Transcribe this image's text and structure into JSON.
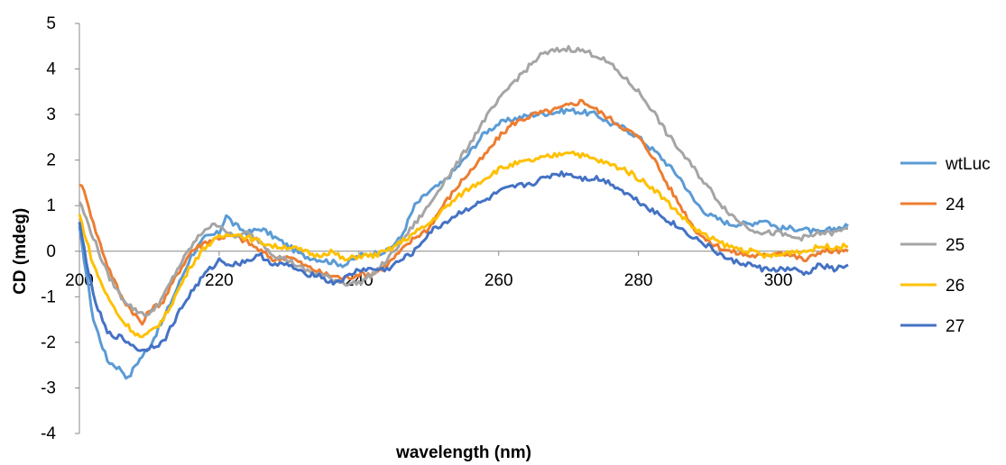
{
  "chart_data": {
    "type": "line",
    "title": "",
    "xlabel": "wavelength (nm)",
    "ylabel": "CD (mdeg)",
    "xlim": [
      200,
      310
    ],
    "ylim": [
      -4,
      5
    ],
    "xticks": [
      200,
      220,
      240,
      260,
      280,
      300
    ],
    "xtick_labels": [
      "200",
      "220",
      "240",
      "260",
      "280",
      "300"
    ],
    "yticks": [
      -4,
      -3,
      -2,
      -1,
      0,
      1,
      2,
      3,
      4,
      5
    ],
    "ytick_labels": [
      "-4",
      "-3",
      "-2",
      "-1",
      "0",
      "1",
      "2",
      "3",
      "4",
      "5"
    ],
    "grid": false,
    "legend_position": "right",
    "series": [
      {
        "name": "wtLuc",
        "color": "#5B9BD5",
        "points": [
          [
            200,
            0.5
          ],
          [
            202,
            -1.5
          ],
          [
            204,
            -2.4
          ],
          [
            206,
            -2.6
          ],
          [
            207,
            -2.8
          ],
          [
            208,
            -2.5
          ],
          [
            210,
            -2.1
          ],
          [
            212,
            -1.5
          ],
          [
            214,
            -0.8
          ],
          [
            216,
            -0.1
          ],
          [
            218,
            0.3
          ],
          [
            220,
            0.4
          ],
          [
            221,
            0.8
          ],
          [
            222,
            0.6
          ],
          [
            224,
            0.4
          ],
          [
            226,
            0.5
          ],
          [
            228,
            0.3
          ],
          [
            230,
            0.1
          ],
          [
            232,
            -0.1
          ],
          [
            235,
            -0.2
          ],
          [
            238,
            -0.3
          ],
          [
            240,
            -0.1
          ],
          [
            244,
            0.0
          ],
          [
            246,
            0.3
          ],
          [
            248,
            1.0
          ],
          [
            250,
            1.3
          ],
          [
            252,
            1.5
          ],
          [
            255,
            2.0
          ],
          [
            258,
            2.6
          ],
          [
            260,
            2.8
          ],
          [
            262,
            2.9
          ],
          [
            265,
            3.0
          ],
          [
            268,
            3.05
          ],
          [
            270,
            3.1
          ],
          [
            272,
            3.05
          ],
          [
            274,
            3.0
          ],
          [
            276,
            2.8
          ],
          [
            278,
            2.7
          ],
          [
            280,
            2.5
          ],
          [
            283,
            2.1
          ],
          [
            286,
            1.6
          ],
          [
            288,
            1.1
          ],
          [
            290,
            0.8
          ],
          [
            293,
            0.6
          ],
          [
            296,
            0.6
          ],
          [
            298,
            0.7
          ],
          [
            300,
            0.5
          ],
          [
            303,
            0.5
          ],
          [
            306,
            0.4
          ],
          [
            308,
            0.5
          ],
          [
            310,
            0.55
          ]
        ]
      },
      {
        "name": "24",
        "color": "#ED7D31",
        "points": [
          [
            200,
            1.5
          ],
          [
            201,
            1.2
          ],
          [
            202,
            0.6
          ],
          [
            204,
            -0.3
          ],
          [
            206,
            -1.0
          ],
          [
            208,
            -1.4
          ],
          [
            209,
            -1.6
          ],
          [
            210,
            -1.3
          ],
          [
            212,
            -1.1
          ],
          [
            214,
            -0.5
          ],
          [
            216,
            0.0
          ],
          [
            218,
            0.2
          ],
          [
            220,
            0.3
          ],
          [
            222,
            0.35
          ],
          [
            224,
            0.2
          ],
          [
            226,
            0.0
          ],
          [
            228,
            -0.2
          ],
          [
            230,
            -0.1
          ],
          [
            232,
            -0.3
          ],
          [
            235,
            -0.5
          ],
          [
            238,
            -0.6
          ],
          [
            240,
            -0.5
          ],
          [
            242,
            -0.5
          ],
          [
            244,
            -0.3
          ],
          [
            246,
            0.0
          ],
          [
            248,
            0.3
          ],
          [
            250,
            0.5
          ],
          [
            252,
            1.0
          ],
          [
            255,
            1.6
          ],
          [
            258,
            2.1
          ],
          [
            260,
            2.5
          ],
          [
            262,
            2.8
          ],
          [
            265,
            3.0
          ],
          [
            268,
            3.1
          ],
          [
            270,
            3.2
          ],
          [
            272,
            3.3
          ],
          [
            274,
            3.1
          ],
          [
            276,
            2.9
          ],
          [
            278,
            2.7
          ],
          [
            280,
            2.5
          ],
          [
            282,
            2.1
          ],
          [
            284,
            1.5
          ],
          [
            286,
            1.0
          ],
          [
            288,
            0.5
          ],
          [
            290,
            0.2
          ],
          [
            293,
            0.0
          ],
          [
            296,
            -0.1
          ],
          [
            298,
            -0.1
          ],
          [
            300,
            0.0
          ],
          [
            302,
            -0.1
          ],
          [
            304,
            -0.2
          ],
          [
            306,
            0.0
          ],
          [
            308,
            0.0
          ],
          [
            310,
            0.0
          ]
        ]
      },
      {
        "name": "25",
        "color": "#A5A5A5",
        "points": [
          [
            200,
            1.1
          ],
          [
            202,
            0.3
          ],
          [
            204,
            -0.5
          ],
          [
            206,
            -1.0
          ],
          [
            208,
            -1.3
          ],
          [
            210,
            -1.4
          ],
          [
            212,
            -1.0
          ],
          [
            214,
            -0.4
          ],
          [
            216,
            0.1
          ],
          [
            218,
            0.5
          ],
          [
            220,
            0.6
          ],
          [
            222,
            0.3
          ],
          [
            224,
            0.4
          ],
          [
            226,
            0.2
          ],
          [
            228,
            -0.1
          ],
          [
            230,
            -0.2
          ],
          [
            232,
            -0.4
          ],
          [
            234,
            -0.5
          ],
          [
            236,
            -0.6
          ],
          [
            238,
            -0.7
          ],
          [
            240,
            -0.7
          ],
          [
            242,
            -0.5
          ],
          [
            244,
            -0.2
          ],
          [
            246,
            0.2
          ],
          [
            248,
            0.6
          ],
          [
            250,
            1.0
          ],
          [
            252,
            1.5
          ],
          [
            254,
            1.9
          ],
          [
            256,
            2.4
          ],
          [
            258,
            2.9
          ],
          [
            260,
            3.3
          ],
          [
            262,
            3.7
          ],
          [
            264,
            4.0
          ],
          [
            266,
            4.3
          ],
          [
            268,
            4.4
          ],
          [
            270,
            4.45
          ],
          [
            272,
            4.4
          ],
          [
            274,
            4.3
          ],
          [
            276,
            4.1
          ],
          [
            278,
            3.8
          ],
          [
            280,
            3.5
          ],
          [
            282,
            3.1
          ],
          [
            284,
            2.6
          ],
          [
            286,
            2.2
          ],
          [
            288,
            1.8
          ],
          [
            290,
            1.4
          ],
          [
            292,
            1.0
          ],
          [
            294,
            0.7
          ],
          [
            296,
            0.5
          ],
          [
            298,
            0.4
          ],
          [
            300,
            0.4
          ],
          [
            302,
            0.3
          ],
          [
            304,
            0.3
          ],
          [
            306,
            0.4
          ],
          [
            308,
            0.4
          ],
          [
            310,
            0.5
          ]
        ]
      },
      {
        "name": "26",
        "color": "#FFC000",
        "points": [
          [
            200,
            0.8
          ],
          [
            202,
            -0.3
          ],
          [
            204,
            -1.0
          ],
          [
            206,
            -1.5
          ],
          [
            208,
            -1.8
          ],
          [
            209,
            -1.9
          ],
          [
            210,
            -1.8
          ],
          [
            212,
            -1.5
          ],
          [
            214,
            -0.9
          ],
          [
            216,
            -0.3
          ],
          [
            218,
            0.1
          ],
          [
            220,
            0.3
          ],
          [
            222,
            0.4
          ],
          [
            224,
            0.3
          ],
          [
            226,
            0.2
          ],
          [
            228,
            0.1
          ],
          [
            230,
            0.1
          ],
          [
            232,
            0.0
          ],
          [
            234,
            -0.1
          ],
          [
            236,
            0.0
          ],
          [
            238,
            -0.2
          ],
          [
            240,
            -0.1
          ],
          [
            242,
            -0.1
          ],
          [
            244,
            0.0
          ],
          [
            246,
            0.2
          ],
          [
            248,
            0.4
          ],
          [
            250,
            0.6
          ],
          [
            252,
            0.9
          ],
          [
            255,
            1.3
          ],
          [
            258,
            1.6
          ],
          [
            260,
            1.8
          ],
          [
            262,
            1.9
          ],
          [
            265,
            2.0
          ],
          [
            268,
            2.1
          ],
          [
            270,
            2.2
          ],
          [
            272,
            2.1
          ],
          [
            274,
            2.0
          ],
          [
            276,
            1.9
          ],
          [
            278,
            1.8
          ],
          [
            280,
            1.6
          ],
          [
            282,
            1.4
          ],
          [
            284,
            1.1
          ],
          [
            286,
            0.8
          ],
          [
            288,
            0.5
          ],
          [
            290,
            0.3
          ],
          [
            293,
            0.1
          ],
          [
            296,
            0.0
          ],
          [
            298,
            -0.1
          ],
          [
            300,
            -0.1
          ],
          [
            302,
            0.0
          ],
          [
            304,
            0.0
          ],
          [
            306,
            0.1
          ],
          [
            308,
            0.1
          ],
          [
            310,
            0.1
          ]
        ]
      },
      {
        "name": "27",
        "color": "#4472C4",
        "points": [
          [
            200,
            0.6
          ],
          [
            202,
            -1.0
          ],
          [
            204,
            -1.8
          ],
          [
            206,
            -1.9
          ],
          [
            208,
            -2.1
          ],
          [
            209,
            -2.2
          ],
          [
            210,
            -2.1
          ],
          [
            212,
            -2.0
          ],
          [
            214,
            -1.4
          ],
          [
            216,
            -0.9
          ],
          [
            218,
            -0.5
          ],
          [
            220,
            -0.2
          ],
          [
            222,
            -0.3
          ],
          [
            224,
            -0.2
          ],
          [
            226,
            -0.1
          ],
          [
            228,
            -0.3
          ],
          [
            230,
            -0.3
          ],
          [
            232,
            -0.5
          ],
          [
            234,
            -0.5
          ],
          [
            236,
            -0.7
          ],
          [
            238,
            -0.6
          ],
          [
            240,
            -0.4
          ],
          [
            242,
            -0.4
          ],
          [
            244,
            -0.4
          ],
          [
            246,
            -0.2
          ],
          [
            248,
            0.0
          ],
          [
            250,
            0.4
          ],
          [
            252,
            0.6
          ],
          [
            255,
            0.9
          ],
          [
            258,
            1.1
          ],
          [
            260,
            1.3
          ],
          [
            262,
            1.4
          ],
          [
            265,
            1.5
          ],
          [
            268,
            1.7
          ],
          [
            270,
            1.7
          ],
          [
            272,
            1.6
          ],
          [
            274,
            1.6
          ],
          [
            276,
            1.5
          ],
          [
            278,
            1.3
          ],
          [
            280,
            1.1
          ],
          [
            282,
            0.9
          ],
          [
            284,
            0.7
          ],
          [
            286,
            0.5
          ],
          [
            288,
            0.3
          ],
          [
            290,
            0.1
          ],
          [
            293,
            -0.2
          ],
          [
            296,
            -0.3
          ],
          [
            298,
            -0.4
          ],
          [
            300,
            -0.4
          ],
          [
            302,
            -0.4
          ],
          [
            304,
            -0.5
          ],
          [
            306,
            -0.3
          ],
          [
            308,
            -0.4
          ],
          [
            310,
            -0.3
          ]
        ]
      }
    ]
  }
}
